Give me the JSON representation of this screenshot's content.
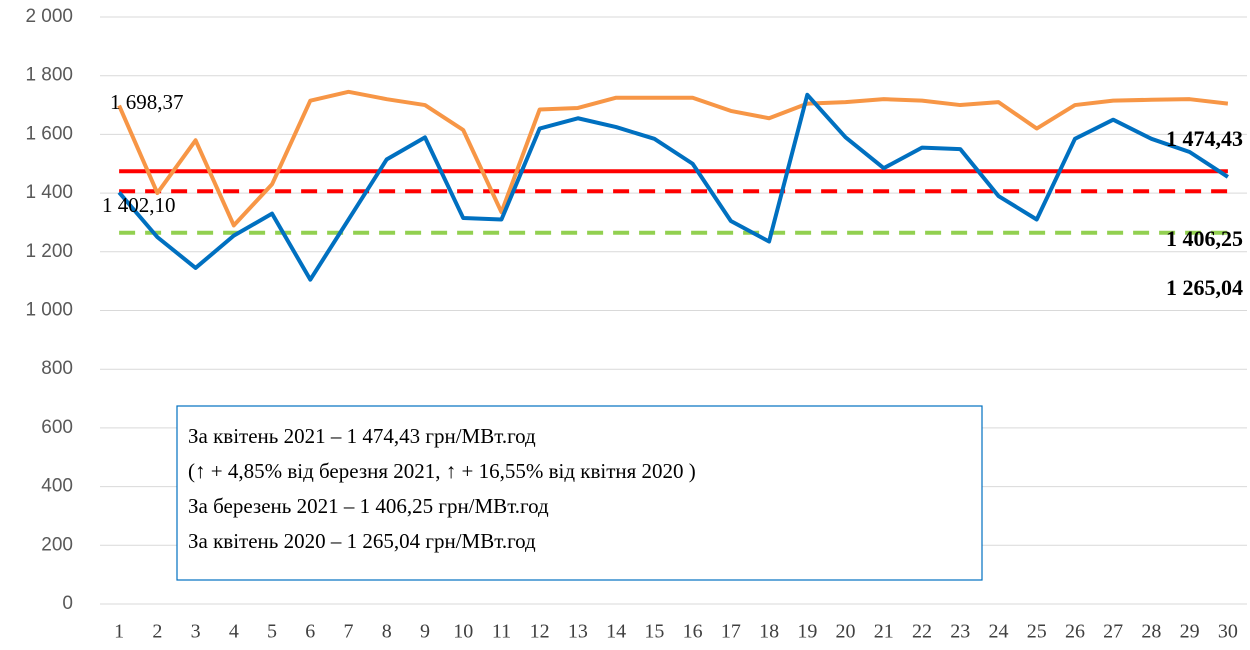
{
  "chart_data": {
    "type": "line",
    "categories": [
      "1",
      "2",
      "3",
      "4",
      "5",
      "6",
      "7",
      "8",
      "9",
      "10",
      "11",
      "12",
      "13",
      "14",
      "15",
      "16",
      "17",
      "18",
      "19",
      "20",
      "21",
      "22",
      "23",
      "24",
      "25",
      "26",
      "27",
      "28",
      "29",
      "30"
    ],
    "series": [
      {
        "color": "#f79646",
        "values": [
          1698.37,
          1400,
          1580,
          1290,
          1430,
          1715,
          1745,
          1720,
          1700,
          1615,
          1335,
          1685,
          1690,
          1725,
          1725,
          1725,
          1680,
          1655,
          1705,
          1710,
          1720,
          1715,
          1700,
          1710,
          1620,
          1700,
          1715,
          1718,
          1720,
          1705
        ],
        "value_labels": [
          "1 698,37",
          null,
          null,
          null,
          null,
          null,
          null,
          null,
          null,
          null,
          null,
          null,
          null,
          null,
          null,
          null,
          null,
          null,
          null,
          null,
          null,
          null,
          null,
          null,
          null,
          null,
          null,
          null,
          null,
          null
        ]
      },
      {
        "color": "#0070c0",
        "values": [
          1402.1,
          1250,
          1145,
          1255,
          1330,
          1105,
          1310,
          1515,
          1590,
          1315,
          1310,
          1620,
          1655,
          1625,
          1585,
          1500,
          1305,
          1235,
          1735,
          1590,
          1485,
          1555,
          1550,
          1390,
          1310,
          1585,
          1650,
          1585,
          1540,
          1455
        ],
        "value_labels": [
          "1 402,10",
          null,
          null,
          null,
          null,
          null,
          null,
          null,
          null,
          null,
          null,
          null,
          null,
          null,
          null,
          null,
          null,
          null,
          null,
          null,
          null,
          null,
          null,
          null,
          null,
          null,
          null,
          null,
          null,
          null
        ]
      }
    ],
    "reference_lines": [
      {
        "value": 1474.43,
        "label": "1 474,43",
        "color": "#ff0000",
        "dashed": false
      },
      {
        "value": 1406.25,
        "label": "1 406,25",
        "color": "#ff0000",
        "dashed": true
      },
      {
        "value": 1265.04,
        "label": "1 265,04",
        "color": "#92d050",
        "dashed": true
      }
    ],
    "ylim": [
      0,
      2000
    ],
    "yticks": [
      0,
      200,
      400,
      600,
      800,
      {
        "value": 1000,
        "label": "1 000"
      },
      {
        "value": 1200,
        "label": "1 200"
      },
      {
        "value": 1400,
        "label": "1 400"
      },
      {
        "value": 1600,
        "label": "1 600"
      },
      {
        "value": 1800,
        "label": "1 800"
      },
      {
        "value": 2000,
        "label": "2 000"
      }
    ],
    "grid": true,
    "annotation": [
      "За квітень 2021 – 1 474,43 грн/МВт.год",
      "(↑ +  4,85% від березня 2021, ↑ + 16,55% від квітня 2020 )",
      "За березень 2021 – 1 406,25 грн/МВт.год",
      "За квітень 2020 – 1 265,04 грн/МВт.год"
    ]
  }
}
